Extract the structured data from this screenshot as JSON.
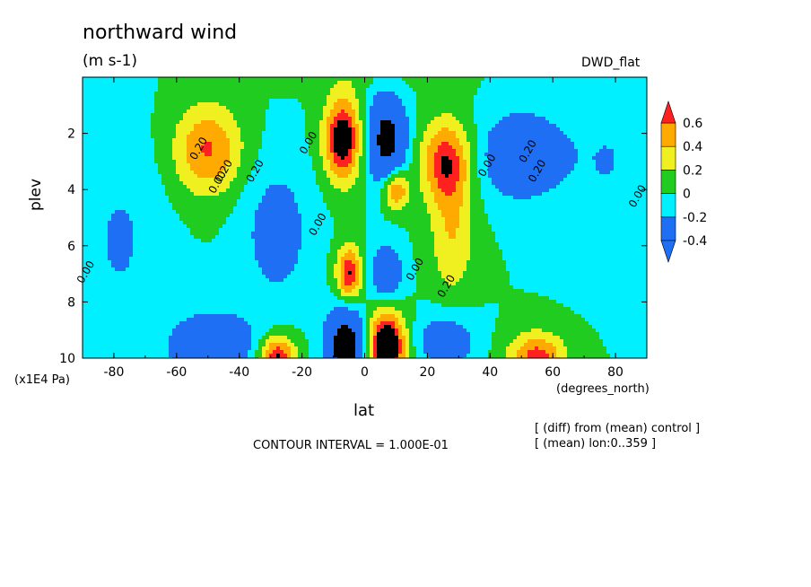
{
  "title": "northward wind",
  "units": "(m s-1)",
  "dataset": "DWD_flat",
  "y_label": "plev",
  "y_multiplier": "(x1E4 Pa)",
  "x_label": "lat",
  "x_units": "(degrees_north)",
  "contour_interval": "CONTOUR INTERVAL = 1.000E-01",
  "notes": [
    "[ (diff) from (mean) control ]",
    "[ (mean) lon:0..359 ]"
  ],
  "chart_data": {
    "type": "heatmap",
    "title": "northward wind",
    "xlabel": "lat",
    "ylabel": "plev",
    "xlim": [
      -90,
      90
    ],
    "ylim": [
      10,
      0
    ],
    "x_ticks": [
      "-80",
      "-60",
      "-40",
      "-20",
      "0",
      "20",
      "40",
      "60",
      "80"
    ],
    "x_tick_values": [
      -80,
      -60,
      -40,
      -20,
      0,
      20,
      40,
      60,
      80
    ],
    "y_ticks": [
      "2",
      "4",
      "6",
      "8",
      "10"
    ],
    "y_tick_values": [
      2,
      4,
      6,
      8,
      10
    ],
    "colorbar": {
      "labels": [
        "0.6",
        "0.4",
        "0.2",
        "0",
        "-0.2",
        "-0.4"
      ],
      "label_values": [
        0.6,
        0.4,
        0.2,
        0,
        -0.2,
        -0.4
      ],
      "levels": [
        -0.5,
        -0.4,
        -0.2,
        0,
        0.2,
        0.4,
        0.6,
        0.7
      ],
      "colors": [
        "#1f6ff5",
        "#00f0ff",
        "#20cc20",
        "#f0f020",
        "#ffaa00",
        "#ff2020"
      ],
      "arrow_low_color": "#1f6ff5",
      "arrow_high_color": "#ff2020"
    },
    "contour_labels": [
      {
        "text": "0.20",
        "lat": -52,
        "plev": 2.6
      },
      {
        "text": "0.20",
        "lat": -44,
        "plev": 3.4
      },
      {
        "text": "0.00",
        "lat": -46,
        "plev": 3.8
      },
      {
        "text": "0.20",
        "lat": -34,
        "plev": 3.4
      },
      {
        "text": "0.00",
        "lat": -17,
        "plev": 2.4
      },
      {
        "text": "0.00",
        "lat": -14,
        "plev": 5.3
      },
      {
        "text": "0.00",
        "lat": 40,
        "plev": 3.2
      },
      {
        "text": "0.20",
        "lat": 53,
        "plev": 2.7
      },
      {
        "text": "0.20",
        "lat": 56,
        "plev": 3.4
      },
      {
        "text": "0.20",
        "lat": 27,
        "plev": 7.5
      },
      {
        "text": "0.00",
        "lat": 17,
        "plev": 6.9
      },
      {
        "text": "0.00",
        "lat": 88,
        "plev": 4.3
      },
      {
        "text": "0.00",
        "lat": -88,
        "plev": 7.0
      }
    ],
    "blobs": [
      {
        "lat": -50,
        "plev": 2.6,
        "slat": 11,
        "splev": 1.6,
        "amp": 0.62
      },
      {
        "lat": -7,
        "plev": 2.2,
        "slat": 6,
        "splev": 1.5,
        "amp": 0.95
      },
      {
        "lat": 7,
        "plev": 2.2,
        "slat": 6,
        "splev": 1.5,
        "amp": -0.95
      },
      {
        "lat": 26,
        "plev": 3.0,
        "slat": 8,
        "splev": 1.5,
        "amp": 0.72
      },
      {
        "lat": 28,
        "plev": 5.7,
        "slat": 7,
        "splev": 2.2,
        "amp": 0.38
      },
      {
        "lat": 10,
        "plev": 4.0,
        "slat": 4,
        "splev": 0.7,
        "amp": 0.7
      },
      {
        "lat": 50,
        "plev": 2.8,
        "slat": 13,
        "splev": 1.5,
        "amp": -0.55
      },
      {
        "lat": -28,
        "plev": 5.5,
        "slat": 11,
        "splev": 2.5,
        "amp": -0.33
      },
      {
        "lat": -5,
        "plev": 7.0,
        "slat": 4,
        "splev": 1.0,
        "amp": 0.78
      },
      {
        "lat": 7,
        "plev": 7.0,
        "slat": 5,
        "splev": 1.0,
        "amp": -0.55
      },
      {
        "lat": -6,
        "plev": 9.6,
        "slat": 6,
        "splev": 1.3,
        "amp": -1.1
      },
      {
        "lat": 7,
        "plev": 9.6,
        "slat": 6,
        "splev": 1.3,
        "amp": 1.1
      },
      {
        "lat": -28,
        "plev": 10.0,
        "slat": 6,
        "splev": 0.8,
        "amp": 0.85
      },
      {
        "lat": 55,
        "plev": 10.0,
        "slat": 9,
        "splev": 0.9,
        "amp": 0.7
      },
      {
        "lat": -48,
        "plev": 9.6,
        "slat": 14,
        "splev": 1.2,
        "amp": -0.55
      },
      {
        "lat": 26,
        "plev": 9.4,
        "slat": 9,
        "splev": 1.0,
        "amp": -0.45
      },
      {
        "lat": -78,
        "plev": 5.8,
        "slat": 14,
        "splev": 3.5,
        "amp": -0.22
      },
      {
        "lat": 78,
        "plev": 3.0,
        "slat": 14,
        "splev": 3.0,
        "amp": -0.2
      },
      {
        "lat": 0,
        "plev": 0.0,
        "slat": 25,
        "splev": 0.6,
        "amp": 0.08
      }
    ]
  }
}
